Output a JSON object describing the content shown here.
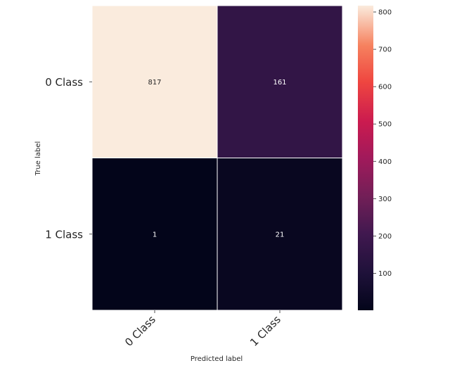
{
  "chart_data": {
    "type": "heatmap",
    "title": "",
    "xlabel": "Predicted label",
    "ylabel": "True label",
    "x_categories": [
      "0 Class",
      "1 Class"
    ],
    "y_categories": [
      "0 Class",
      "1 Class"
    ],
    "values": [
      [
        817,
        161
      ],
      [
        1,
        21
      ]
    ],
    "value_range": [
      1,
      817
    ],
    "colormap": "rocket",
    "colorbar": {
      "ticks": [
        100,
        200,
        300,
        400,
        500,
        600,
        700,
        800
      ]
    },
    "cell_borders": "#ffffff",
    "annotation_colors": {
      "light_cell": "#262626",
      "dark_cell": "#ffffff"
    },
    "grid": false
  }
}
